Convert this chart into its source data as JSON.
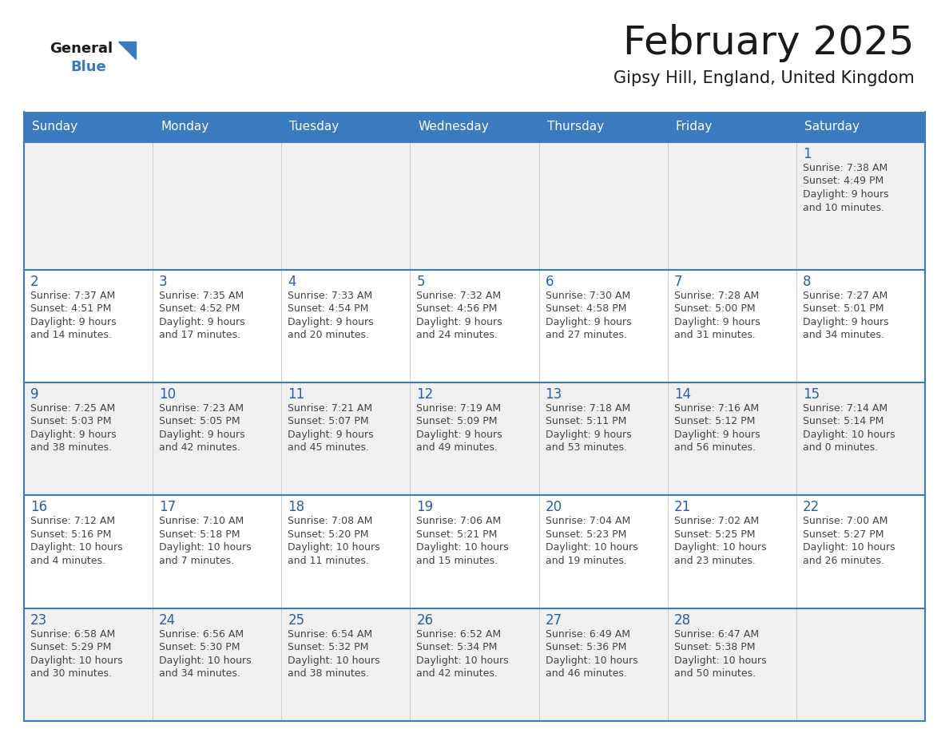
{
  "title": "February 2025",
  "subtitle": "Gipsy Hill, England, United Kingdom",
  "days_of_week": [
    "Sunday",
    "Monday",
    "Tuesday",
    "Wednesday",
    "Thursday",
    "Friday",
    "Saturday"
  ],
  "header_bg": "#3a7abf",
  "header_text": "#ffffff",
  "cell_bg_odd": "#f0f0f0",
  "cell_bg_even": "#ffffff",
  "text_color": "#444444",
  "day_number_color": "#2a5fa8",
  "border_color": "#3a7abf",
  "title_color": "#1a1a1a",
  "subtitle_color": "#1a1a1a",
  "logo_general_color": "#1a1a1a",
  "logo_blue_color": "#3a7abf",
  "calendar_data": [
    [
      null,
      null,
      null,
      null,
      null,
      null,
      {
        "day": 1,
        "sunrise": "7:38 AM",
        "sunset": "4:49 PM",
        "daylight": "9 hours and 10 minutes."
      }
    ],
    [
      {
        "day": 2,
        "sunrise": "7:37 AM",
        "sunset": "4:51 PM",
        "daylight": "9 hours and 14 minutes."
      },
      {
        "day": 3,
        "sunrise": "7:35 AM",
        "sunset": "4:52 PM",
        "daylight": "9 hours and 17 minutes."
      },
      {
        "day": 4,
        "sunrise": "7:33 AM",
        "sunset": "4:54 PM",
        "daylight": "9 hours and 20 minutes."
      },
      {
        "day": 5,
        "sunrise": "7:32 AM",
        "sunset": "4:56 PM",
        "daylight": "9 hours and 24 minutes."
      },
      {
        "day": 6,
        "sunrise": "7:30 AM",
        "sunset": "4:58 PM",
        "daylight": "9 hours and 27 minutes."
      },
      {
        "day": 7,
        "sunrise": "7:28 AM",
        "sunset": "5:00 PM",
        "daylight": "9 hours and 31 minutes."
      },
      {
        "day": 8,
        "sunrise": "7:27 AM",
        "sunset": "5:01 PM",
        "daylight": "9 hours and 34 minutes."
      }
    ],
    [
      {
        "day": 9,
        "sunrise": "7:25 AM",
        "sunset": "5:03 PM",
        "daylight": "9 hours and 38 minutes."
      },
      {
        "day": 10,
        "sunrise": "7:23 AM",
        "sunset": "5:05 PM",
        "daylight": "9 hours and 42 minutes."
      },
      {
        "day": 11,
        "sunrise": "7:21 AM",
        "sunset": "5:07 PM",
        "daylight": "9 hours and 45 minutes."
      },
      {
        "day": 12,
        "sunrise": "7:19 AM",
        "sunset": "5:09 PM",
        "daylight": "9 hours and 49 minutes."
      },
      {
        "day": 13,
        "sunrise": "7:18 AM",
        "sunset": "5:11 PM",
        "daylight": "9 hours and 53 minutes."
      },
      {
        "day": 14,
        "sunrise": "7:16 AM",
        "sunset": "5:12 PM",
        "daylight": "9 hours and 56 minutes."
      },
      {
        "day": 15,
        "sunrise": "7:14 AM",
        "sunset": "5:14 PM",
        "daylight": "10 hours and 0 minutes."
      }
    ],
    [
      {
        "day": 16,
        "sunrise": "7:12 AM",
        "sunset": "5:16 PM",
        "daylight": "10 hours and 4 minutes."
      },
      {
        "day": 17,
        "sunrise": "7:10 AM",
        "sunset": "5:18 PM",
        "daylight": "10 hours and 7 minutes."
      },
      {
        "day": 18,
        "sunrise": "7:08 AM",
        "sunset": "5:20 PM",
        "daylight": "10 hours and 11 minutes."
      },
      {
        "day": 19,
        "sunrise": "7:06 AM",
        "sunset": "5:21 PM",
        "daylight": "10 hours and 15 minutes."
      },
      {
        "day": 20,
        "sunrise": "7:04 AM",
        "sunset": "5:23 PM",
        "daylight": "10 hours and 19 minutes."
      },
      {
        "day": 21,
        "sunrise": "7:02 AM",
        "sunset": "5:25 PM",
        "daylight": "10 hours and 23 minutes."
      },
      {
        "day": 22,
        "sunrise": "7:00 AM",
        "sunset": "5:27 PM",
        "daylight": "10 hours and 26 minutes."
      }
    ],
    [
      {
        "day": 23,
        "sunrise": "6:58 AM",
        "sunset": "5:29 PM",
        "daylight": "10 hours and 30 minutes."
      },
      {
        "day": 24,
        "sunrise": "6:56 AM",
        "sunset": "5:30 PM",
        "daylight": "10 hours and 34 minutes."
      },
      {
        "day": 25,
        "sunrise": "6:54 AM",
        "sunset": "5:32 PM",
        "daylight": "10 hours and 38 minutes."
      },
      {
        "day": 26,
        "sunrise": "6:52 AM",
        "sunset": "5:34 PM",
        "daylight": "10 hours and 42 minutes."
      },
      {
        "day": 27,
        "sunrise": "6:49 AM",
        "sunset": "5:36 PM",
        "daylight": "10 hours and 46 minutes."
      },
      {
        "day": 28,
        "sunrise": "6:47 AM",
        "sunset": "5:38 PM",
        "daylight": "10 hours and 50 minutes."
      },
      null
    ]
  ]
}
